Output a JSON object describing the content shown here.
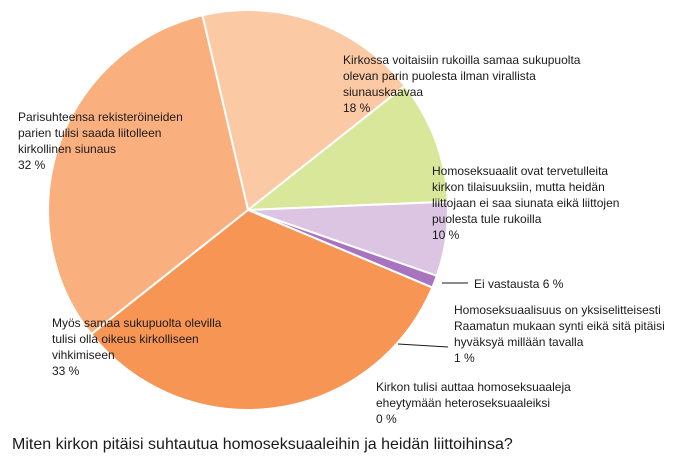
{
  "caption": "Miten kirkon pitäisi suhtautua homoseksuaaleihin ja heidän liittoihinsa?",
  "chart_data": {
    "type": "pie",
    "title": "Miten kirkon pitäisi suhtautua homoseksuaaleihin ja heidän liittoihinsa?",
    "slices": [
      {
        "lines": [
          "Kirkossa voitaisiin rukoilla samaa sukupuolta",
          "olevan parin puolesta ilman virallista",
          "siunauskaavaa",
          "18 %"
        ],
        "value": 18,
        "color": "#fbc9a3"
      },
      {
        "lines": [
          "Homoseksuaalit ovat tervetulleita",
          "kirkon tilaisuuksiin, mutta heidän",
          "liittojaan ei saa siunata eikä liittojen",
          "puolesta tule rukoilla",
          "10 %"
        ],
        "value": 10,
        "color": "#d9e79b"
      },
      {
        "lines": [
          "Ei vastausta 6 %"
        ],
        "value": 6,
        "color": "#dcc5e3"
      },
      {
        "lines": [
          "Homoseksuaalisuus on yksiselitteisesti",
          "Raamatun mukaan synti eikä sitä pitäisi",
          "hyväksyä millään tavalla",
          "1 %"
        ],
        "value": 1,
        "color": "#a874c0"
      },
      {
        "lines": [
          "Kirkon tulisi auttaa homoseksuaaleja",
          "eheytymään heteroseksuaaleiksi",
          "0 %"
        ],
        "value": 0,
        "color": "#c0504d"
      },
      {
        "lines": [
          "Myös samaa sukupuolta olevilla",
          "tulisi olla oikeus kirkolliseen",
          "vihkimiseen",
          "33 %"
        ],
        "value": 33,
        "color": "#f79555"
      },
      {
        "lines": [
          "Parisuhteensa rekisteröineiden",
          "parien tulisi saada liitolleen",
          "kirkollinen siunaus",
          "32 %"
        ],
        "value": 32,
        "color": "#fab07e"
      }
    ]
  }
}
